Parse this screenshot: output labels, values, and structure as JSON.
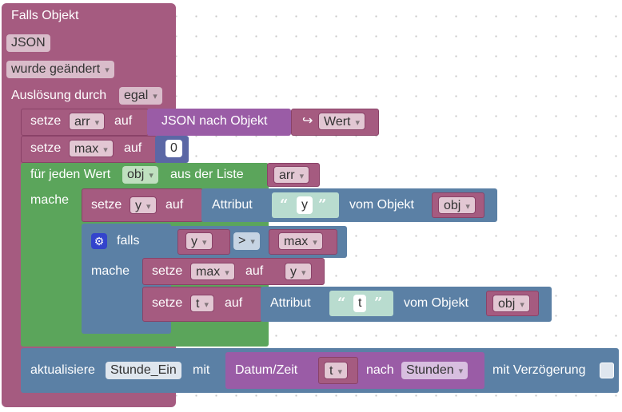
{
  "trigger": {
    "title": "Falls Objekt",
    "object_id": "JSON",
    "event": "wurde geändert",
    "source_label": "Auslösung durch",
    "source_value": "egal"
  },
  "set_arr": {
    "set_label": "setze",
    "var": "arr",
    "to_label": "auf",
    "convert_label": "JSON nach Objekt",
    "arrow_icon": "↪",
    "value": "Wert"
  },
  "set_max": {
    "set_label": "setze",
    "var": "max",
    "to_label": "auf",
    "number": "0"
  },
  "foreach": {
    "label": "für jeden Wert",
    "var": "obj",
    "list_label": "aus der Liste",
    "list_var": "arr",
    "do_label": "mache"
  },
  "set_y": {
    "set_label": "setze",
    "var": "y",
    "to_label": "auf",
    "attr_label": "Attribut",
    "attr_name": "y",
    "of_label": "vom Objekt",
    "obj": "obj"
  },
  "if_block": {
    "if_label": "falls",
    "left": "y",
    "op": ">",
    "right": "max",
    "do_label": "mache"
  },
  "set_max2": {
    "set_label": "setze",
    "var": "max",
    "to_label": "auf",
    "value": "y"
  },
  "set_t": {
    "set_label": "setze",
    "var": "t",
    "to_label": "auf",
    "attr_label": "Attribut",
    "attr_name": "t",
    "of_label": "vom Objekt",
    "obj": "obj"
  },
  "update": {
    "label": "aktualisiere",
    "state": "Stunde_Ein",
    "with_label": "mit",
    "date_label": "Datum/Zeit",
    "date_var": "t",
    "after_label": "nach",
    "unit": "Stunden",
    "delay_label": "mit Verzögerung"
  },
  "colors": {
    "trigger": "#a55b80",
    "loop": "#5ba55b",
    "logic": "#5b80a5",
    "convert": "#9a5ca6",
    "text": "#b9dccf",
    "math": "#5b67a5"
  }
}
